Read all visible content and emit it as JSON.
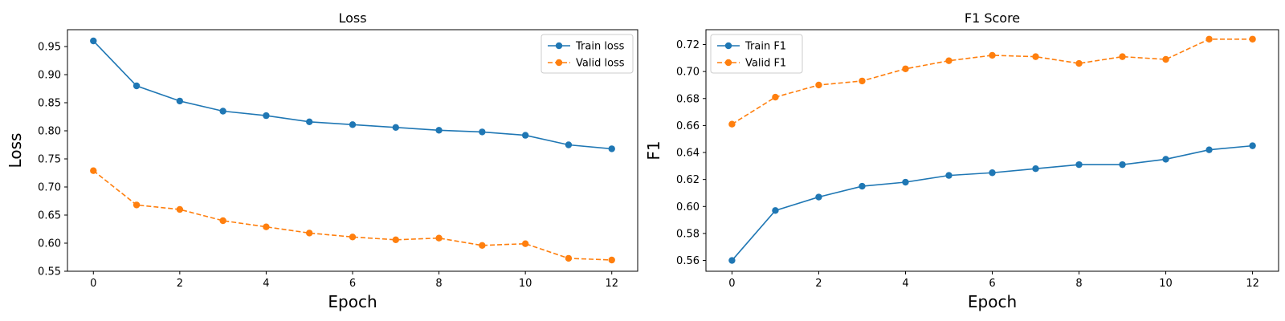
{
  "chart_data": [
    {
      "type": "line",
      "title": "Loss",
      "xlabel": "Epoch",
      "ylabel": "Loss",
      "xlim": [
        -0.6,
        12.6
      ],
      "ylim": [
        0.55,
        0.98
      ],
      "xticks": [
        0,
        2,
        4,
        6,
        8,
        10,
        12
      ],
      "yticks": [
        0.55,
        0.6,
        0.65,
        0.7,
        0.75,
        0.8,
        0.85,
        0.9,
        0.95
      ],
      "ytick_labels": [
        "0.55",
        "0.60",
        "0.65",
        "0.70",
        "0.75",
        "0.80",
        "0.85",
        "0.90",
        "0.95"
      ],
      "legend_loc": "upper right",
      "x": [
        0,
        1,
        2,
        3,
        4,
        5,
        6,
        7,
        8,
        9,
        10,
        11,
        12
      ],
      "series": [
        {
          "name": "Train loss",
          "color": "#1f77b4",
          "dashed": false,
          "values": [
            0.96,
            0.88,
            0.853,
            0.835,
            0.827,
            0.816,
            0.811,
            0.806,
            0.801,
            0.798,
            0.792,
            0.775,
            0.768
          ]
        },
        {
          "name": "Valid loss",
          "color": "#ff7f0e",
          "dashed": true,
          "values": [
            0.729,
            0.668,
            0.66,
            0.64,
            0.629,
            0.618,
            0.611,
            0.606,
            0.609,
            0.596,
            0.599,
            0.573,
            0.57
          ]
        }
      ]
    },
    {
      "type": "line",
      "title": "F1 Score",
      "xlabel": "Epoch",
      "ylabel": "F1",
      "xlim": [
        -0.6,
        12.6
      ],
      "ylim": [
        0.552,
        0.731
      ],
      "xticks": [
        0,
        2,
        4,
        6,
        8,
        10,
        12
      ],
      "yticks": [
        0.56,
        0.58,
        0.6,
        0.62,
        0.64,
        0.66,
        0.68,
        0.7,
        0.72
      ],
      "ytick_labels": [
        "0.56",
        "0.58",
        "0.60",
        "0.62",
        "0.64",
        "0.66",
        "0.68",
        "0.70",
        "0.72"
      ],
      "legend_loc": "upper left",
      "x": [
        0,
        1,
        2,
        3,
        4,
        5,
        6,
        7,
        8,
        9,
        10,
        11,
        12
      ],
      "series": [
        {
          "name": "Train F1",
          "color": "#1f77b4",
          "dashed": false,
          "values": [
            0.56,
            0.597,
            0.607,
            0.615,
            0.618,
            0.623,
            0.625,
            0.628,
            0.631,
            0.631,
            0.635,
            0.642,
            0.645
          ]
        },
        {
          "name": "Valid F1",
          "color": "#ff7f0e",
          "dashed": true,
          "values": [
            0.661,
            0.681,
            0.69,
            0.693,
            0.702,
            0.708,
            0.712,
            0.711,
            0.706,
            0.711,
            0.709,
            0.724,
            0.724
          ]
        }
      ]
    }
  ]
}
